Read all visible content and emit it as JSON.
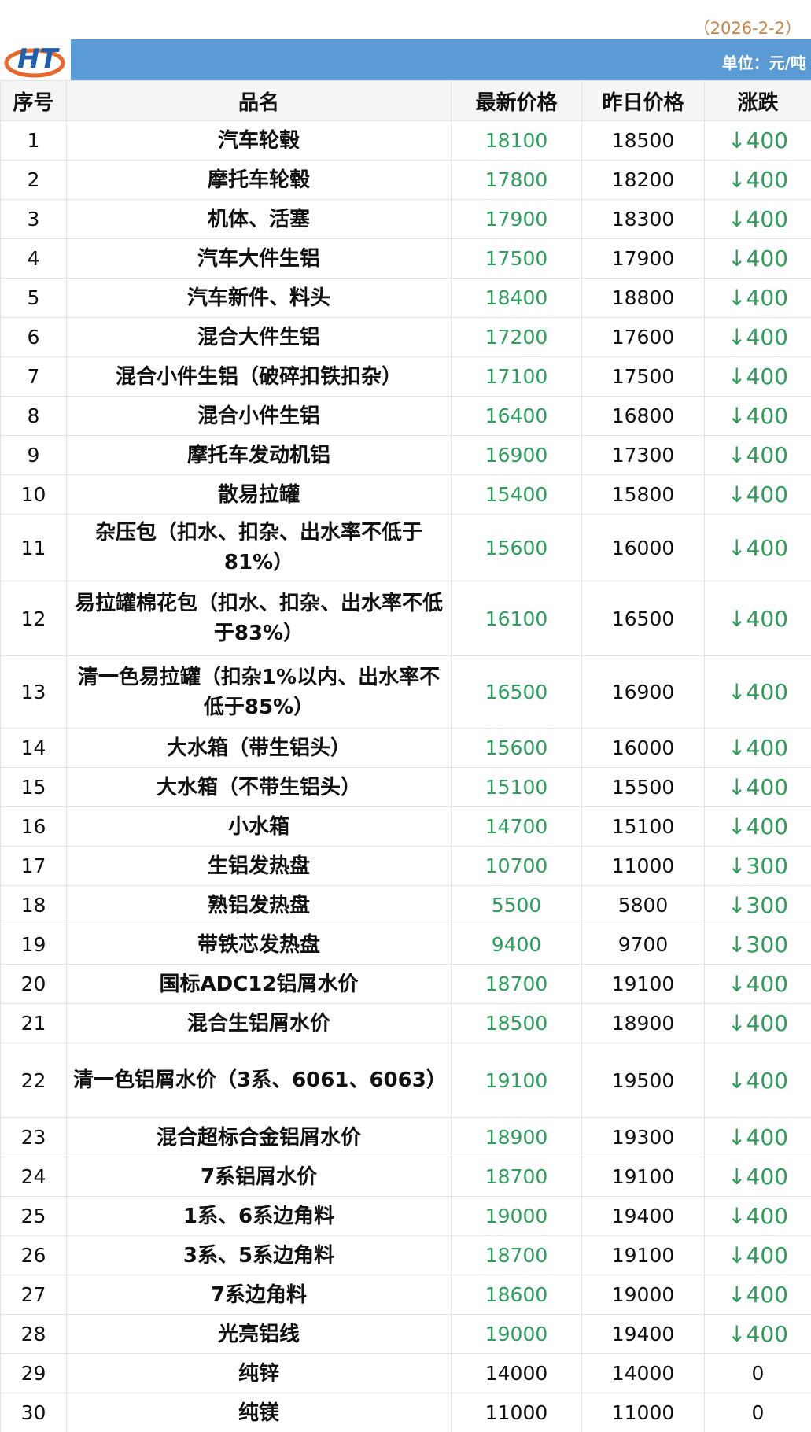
{
  "date": "（2026-2-2）",
  "unit": "单位：元/吨",
  "logo_text": "HT",
  "colors": {
    "band": "#5b9bd5",
    "down": "#2f9e5c",
    "date": "#c8834a"
  },
  "headers": [
    "序号",
    "品名",
    "最新价格",
    "昨日价格",
    "涨跌"
  ],
  "rows": [
    {
      "no": "1",
      "name": "汽车轮毂",
      "latest": "18100",
      "prev": "18500",
      "change": "↓400"
    },
    {
      "no": "2",
      "name": "摩托车轮毂",
      "latest": "17800",
      "prev": "18200",
      "change": "↓400"
    },
    {
      "no": "3",
      "name": "机体、活塞",
      "latest": "17900",
      "prev": "18300",
      "change": "↓400"
    },
    {
      "no": "4",
      "name": "汽车大件生铝",
      "latest": "17500",
      "prev": "17900",
      "change": "↓400"
    },
    {
      "no": "5",
      "name": "汽车新件、料头",
      "latest": "18400",
      "prev": "18800",
      "change": "↓400"
    },
    {
      "no": "6",
      "name": "混合大件生铝",
      "latest": "17200",
      "prev": "17600",
      "change": "↓400"
    },
    {
      "no": "7",
      "name": "混合小件生铝（破碎扣铁扣杂）",
      "latest": "17100",
      "prev": "17500",
      "change": "↓400"
    },
    {
      "no": "8",
      "name": "混合小件生铝",
      "latest": "16400",
      "prev": "16800",
      "change": "↓400"
    },
    {
      "no": "9",
      "name": "摩托车发动机铝",
      "latest": "16900",
      "prev": "17300",
      "change": "↓400"
    },
    {
      "no": "10",
      "name": "散易拉罐",
      "latest": "15400",
      "prev": "15800",
      "change": "↓400"
    },
    {
      "no": "11",
      "name": "杂压包（扣水、扣杂、出水率不低于81%）",
      "latest": "15600",
      "prev": "16000",
      "change": "↓400"
    },
    {
      "no": "12",
      "name": "易拉罐棉花包（扣水、扣杂、出水率不低于83%）",
      "latest": "16100",
      "prev": "16500",
      "change": "↓400"
    },
    {
      "no": "13",
      "name": "清一色易拉罐（扣杂1%以内、出水率不低于85%）",
      "latest": "16500",
      "prev": "16900",
      "change": "↓400"
    },
    {
      "no": "14",
      "name": "大水箱（带生铝头）",
      "latest": "15600",
      "prev": "16000",
      "change": "↓400"
    },
    {
      "no": "15",
      "name": "大水箱（不带生铝头）",
      "latest": "15100",
      "prev": "15500",
      "change": "↓400"
    },
    {
      "no": "16",
      "name": "小水箱",
      "latest": "14700",
      "prev": "15100",
      "change": "↓400"
    },
    {
      "no": "17",
      "name": "生铝发热盘",
      "latest": "10700",
      "prev": "11000",
      "change": "↓300"
    },
    {
      "no": "18",
      "name": "熟铝发热盘",
      "latest": "5500",
      "prev": "5800",
      "change": "↓300"
    },
    {
      "no": "19",
      "name": "带铁芯发热盘",
      "latest": "9400",
      "prev": "9700",
      "change": "↓300"
    },
    {
      "no": "20",
      "name": "国标ADC12铝屑水价",
      "latest": "18700",
      "prev": "19100",
      "change": "↓400"
    },
    {
      "no": "21",
      "name": "混合生铝屑水价",
      "latest": "18500",
      "prev": "18900",
      "change": "↓400"
    },
    {
      "no": "22",
      "name": "清一色铝屑水价（3系、6061、6063）",
      "latest": "19100",
      "prev": "19500",
      "change": "↓400"
    },
    {
      "no": "23",
      "name": "混合超标合金铝屑水价",
      "latest": "18900",
      "prev": "19300",
      "change": "↓400"
    },
    {
      "no": "24",
      "name": "7系铝屑水价",
      "latest": "18700",
      "prev": "19100",
      "change": "↓400"
    },
    {
      "no": "25",
      "name": "1系、6系边角料",
      "latest": "19000",
      "prev": "19400",
      "change": "↓400"
    },
    {
      "no": "26",
      "name": "3系、5系边角料",
      "latest": "18700",
      "prev": "19100",
      "change": "↓400"
    },
    {
      "no": "27",
      "name": "7系边角料",
      "latest": "18600",
      "prev": "19000",
      "change": "↓400"
    },
    {
      "no": "28",
      "name": "光亮铝线",
      "latest": "19000",
      "prev": "19400",
      "change": "↓400"
    },
    {
      "no": "29",
      "name": "纯锌",
      "latest": "14000",
      "prev": "14000",
      "change": "0"
    },
    {
      "no": "30",
      "name": "纯镁",
      "latest": "11000",
      "prev": "11000",
      "change": "0"
    }
  ]
}
